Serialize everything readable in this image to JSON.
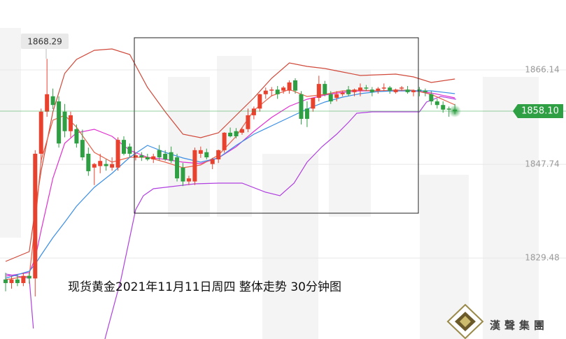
{
  "chart_data": {
    "type": "candlestick",
    "annotation": "现货黄金2021年11月11日周四 整体走势  30分钟图",
    "high_annotation": 1868.29,
    "last_price": {
      "value": 1858.1,
      "label": "1858.10"
    },
    "last_price_color": "#2ea043",
    "up_color": "#e8412e",
    "down_color": "#2ea043",
    "xlim": [
      -0.95,
      94.8
    ],
    "ylim": [
      1813.7,
      1879.76
    ],
    "yticks": [
      1866.14,
      1847.74,
      1829.48
    ],
    "grid": true,
    "x": [
      0,
      1,
      2,
      3,
      4,
      5,
      6,
      7,
      8,
      9,
      10,
      11,
      12,
      13,
      14,
      15,
      16,
      17,
      18,
      19,
      20,
      21,
      22,
      23,
      24,
      25,
      26,
      27,
      28,
      29,
      30,
      31,
      32,
      33,
      34,
      35,
      36,
      37,
      38,
      39,
      40,
      41,
      42,
      43,
      44,
      45,
      46,
      47,
      48,
      49,
      50,
      51,
      52,
      53,
      54,
      55,
      56,
      57,
      58,
      59,
      60,
      61,
      62,
      63,
      64,
      65,
      66,
      67,
      68,
      69,
      70,
      71,
      72,
      73,
      74,
      75,
      76
    ],
    "open": [
      1825.3,
      1824.6,
      1825.3,
      1824.6,
      1826.0,
      1825.5,
      1849.8,
      1858.0,
      1861.0,
      1860.0,
      1858.0,
      1854.2,
      1854.6,
      1852.5,
      1849.8,
      1847.1,
      1847.4,
      1847.8,
      1847.1,
      1847.1,
      1852.5,
      1851.2,
      1849.1,
      1849.5,
      1849.1,
      1848.7,
      1850.5,
      1849.8,
      1850.1,
      1849.1,
      1847.1,
      1844.4,
      1844.4,
      1849.8,
      1850.1,
      1847.8,
      1848.7,
      1850.5,
      1853.9,
      1854.2,
      1853.9,
      1854.6,
      1857.3,
      1858.6,
      1861.4,
      1862.1,
      1862.3,
      1862.1,
      1862.1,
      1864.1,
      1861.4,
      1858.6,
      1858.6,
      1860.7,
      1863.4,
      1861.4,
      1860.7,
      1861.4,
      1862.3,
      1861.8,
      1862.1,
      1862.7,
      1862.3,
      1862.1,
      1862.5,
      1862.7,
      1861.8,
      1862.5,
      1862.3,
      1861.8,
      1862.3,
      1862.1,
      1861.4,
      1860.0,
      1859.3,
      1858.6,
      1858.4
    ],
    "high": [
      1826.6,
      1826.0,
      1826.2,
      1826.6,
      1826.6,
      1850.5,
      1858.6,
      1868.29,
      1862.5,
      1861.0,
      1859.5,
      1858.0,
      1855.5,
      1854.5,
      1851.0,
      1848.0,
      1849.8,
      1848.7,
      1849.1,
      1853.0,
      1853.2,
      1851.8,
      1850.0,
      1850.1,
      1849.8,
      1849.8,
      1851.5,
      1850.5,
      1851.2,
      1849.8,
      1848.0,
      1845.5,
      1851.0,
      1851.2,
      1850.8,
      1849.0,
      1850.6,
      1854.0,
      1854.9,
      1854.8,
      1855.0,
      1858.6,
      1859.0,
      1861.5,
      1862.7,
      1862.8,
      1863.0,
      1863.0,
      1864.1,
      1864.5,
      1862.0,
      1860.0,
      1860.7,
      1865.0,
      1864.0,
      1862.0,
      1862.0,
      1862.0,
      1863.0,
      1862.5,
      1863.5,
      1863.2,
      1862.8,
      1862.8,
      1863.5,
      1863.0,
      1862.5,
      1863.0,
      1863.0,
      1862.3,
      1862.8,
      1862.5,
      1862.0,
      1860.5,
      1860.0,
      1859.0,
      1859.5
    ],
    "low": [
      1823.0,
      1823.5,
      1824.0,
      1824.0,
      1824.5,
      1822.0,
      1848.0,
      1857.0,
      1858.5,
      1851.0,
      1853.0,
      1853.0,
      1851.0,
      1848.5,
      1845.5,
      1843.7,
      1846.0,
      1846.5,
      1846.5,
      1846.5,
      1849.5,
      1849.1,
      1848.5,
      1848.4,
      1848.4,
      1848.0,
      1848.5,
      1848.4,
      1848.0,
      1844.4,
      1843.5,
      1843.7,
      1843.7,
      1849.0,
      1848.7,
      1846.8,
      1848.0,
      1850.0,
      1853.0,
      1852.8,
      1853.5,
      1854.0,
      1856.5,
      1858.0,
      1860.5,
      1861.0,
      1860.5,
      1861.5,
      1861.5,
      1861.5,
      1855.5,
      1855.0,
      1858.0,
      1860.0,
      1861.0,
      1859.5,
      1860.0,
      1861.0,
      1861.0,
      1861.0,
      1861.0,
      1862.0,
      1861.0,
      1861.5,
      1862.0,
      1861.5,
      1861.5,
      1862.0,
      1861.5,
      1861.0,
      1861.0,
      1861.0,
      1859.3,
      1858.6,
      1857.8,
      1857.0,
      1857.5
    ],
    "close": [
      1824.6,
      1825.3,
      1824.6,
      1826.0,
      1825.5,
      1849.8,
      1858.0,
      1861.4,
      1859.3,
      1851.8,
      1854.2,
      1857.3,
      1851.8,
      1849.1,
      1846.4,
      1847.8,
      1848.4,
      1847.4,
      1847.8,
      1852.5,
      1849.8,
      1849.8,
      1849.5,
      1849.1,
      1848.7,
      1849.3,
      1849.1,
      1848.7,
      1848.4,
      1845.0,
      1844.4,
      1845.0,
      1850.5,
      1850.5,
      1849.1,
      1848.7,
      1850.5,
      1853.9,
      1853.2,
      1853.2,
      1854.6,
      1857.3,
      1858.6,
      1861.4,
      1862.1,
      1862.3,
      1861.4,
      1862.7,
      1863.7,
      1862.1,
      1856.6,
      1856.6,
      1860.7,
      1863.4,
      1861.4,
      1860.0,
      1861.4,
      1861.7,
      1861.4,
      1862.3,
      1862.7,
      1862.5,
      1861.8,
      1862.5,
      1862.7,
      1862.1,
      1862.3,
      1862.7,
      1861.8,
      1862.1,
      1862.1,
      1861.8,
      1860.0,
      1859.3,
      1858.4,
      1858.4,
      1858.1
    ],
    "lines": [
      {
        "color": "#d0493a",
        "x": [
          0,
          4,
          5,
          6,
          8,
          10,
          12,
          15,
          18,
          21,
          24,
          27,
          30,
          33,
          36,
          39,
          42,
          45,
          48,
          51,
          54,
          57,
          60,
          63,
          66,
          69,
          72,
          76
        ],
        "values": [
          1828.82,
          1830.73,
          1838.9,
          1846.39,
          1857.97,
          1865.46,
          1868.18,
          1869.95,
          1870.23,
          1869.14,
          1862.74,
          1857.97,
          1853.61,
          1852.93,
          1853.88,
          1857.29,
          1860.69,
          1864.51,
          1867.5,
          1866.82,
          1866.41,
          1865.73,
          1865.05,
          1865.19,
          1865.32,
          1864.78,
          1863.69,
          1864.37
        ]
      },
      {
        "color": "#e030d0",
        "x": [
          0,
          4,
          5,
          6,
          8,
          10,
          12,
          15,
          18,
          21,
          24,
          27,
          30,
          33,
          36,
          39,
          42,
          45,
          48,
          51,
          54,
          57,
          60,
          63,
          66,
          69,
          72,
          76
        ],
        "values": [
          1825.96,
          1826.64,
          1829.37,
          1834.81,
          1845.03,
          1851.84,
          1853.88,
          1854.56,
          1853.2,
          1850.48,
          1849.12,
          1848.71,
          1848.16,
          1847.89,
          1848.98,
          1851.16,
          1854.15,
          1856.88,
          1859.06,
          1860.42,
          1861.24,
          1861.78,
          1862.05,
          1862.05,
          1862.05,
          1862.05,
          1861.64,
          1860.69
        ]
      },
      {
        "color": "#b040e0",
        "x": [
          0,
          4,
          4.7,
          5,
          16.8,
          19.5,
          22,
          23.3,
          25,
          28,
          32,
          36,
          40,
          44,
          46.4,
          48.8,
          51,
          53.5,
          56,
          58,
          59.4,
          62,
          66,
          70,
          71.2,
          73.6,
          76.2
        ],
        "values": [
          1826.37,
          1825.55,
          1815.75,
          null,
          1813.7,
          1825.28,
          1838.9,
          1841.62,
          1842.99,
          1843.39,
          1843.94,
          1844.08,
          1844.08,
          1842.31,
          1841.62,
          1844.08,
          1848.16,
          1851.16,
          1853.61,
          1855.93,
          1857.7,
          1857.97,
          1857.97,
          1857.97,
          1859.87,
          1860.96,
          1860.42
        ]
      },
      {
        "color": "#e8604a",
        "x": [
          0,
          4,
          5,
          6,
          8,
          10,
          12,
          15,
          18,
          21,
          24,
          27,
          30,
          33,
          36,
          39,
          42,
          45,
          48,
          51,
          54,
          57,
          60,
          63,
          66,
          69,
          72,
          76
        ],
        "values": [
          1825.28,
          1825.96,
          1836.18,
          1848.43,
          1856.33,
          1857.29,
          1854.97,
          1850.07,
          1848.16,
          1849.12,
          1849.12,
          1848.16,
          1847.07,
          1847.62,
          1849.52,
          1853.2,
          1858.24,
          1861.1,
          1862.33,
          1860.96,
          1861.37,
          1862.05,
          1862.19,
          1862.05,
          1862.19,
          1862.19,
          1861.37,
          1859.33
        ]
      },
      {
        "color": "#3a8ee6",
        "x": [
          0,
          4,
          5,
          6,
          8,
          10,
          12,
          15,
          18,
          21,
          24,
          27,
          30,
          33,
          36,
          39,
          42,
          45,
          48,
          51,
          54,
          57,
          60,
          63,
          66,
          69,
          72,
          76
        ],
        "values": [
          1825.55,
          1826.91,
          1828.28,
          1830.05,
          1833.45,
          1836.45,
          1839.58,
          1843.26,
          1845.98,
          1849.12,
          1851.43,
          1850.07,
          1848.98,
          1848.16,
          1848.98,
          1851.43,
          1853.61,
          1855.24,
          1856.88,
          1858.51,
          1859.87,
          1860.83,
          1861.51,
          1861.92,
          1862.05,
          1862.05,
          1862.05,
          1861.51
        ]
      }
    ]
  },
  "logo": {
    "text": "漢聲集團"
  }
}
